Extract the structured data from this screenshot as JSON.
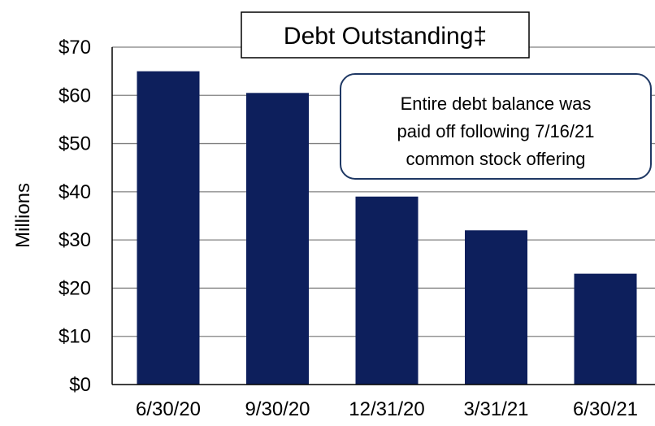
{
  "chart_data": {
    "type": "bar",
    "title": "Debt Outstanding‡",
    "ylabel": "Millions",
    "xlabel": "",
    "categories": [
      "6/30/20",
      "9/30/20",
      "12/31/20",
      "3/31/21",
      "6/30/21"
    ],
    "values": [
      65,
      60.5,
      39,
      32,
      23
    ],
    "ylim": [
      0,
      70
    ],
    "yticks": [
      0,
      10,
      20,
      30,
      40,
      50,
      60,
      70
    ],
    "ytick_labels": [
      "$0",
      "$10",
      "$20",
      "$30",
      "$40",
      "$50",
      "$60",
      "$70"
    ],
    "grid": true,
    "bar_color": "#0d1f5c",
    "annotation": {
      "lines": [
        "Entire debt balance was",
        "paid off following 7/16/21",
        "common stock offering"
      ],
      "border_color": "#1f3864"
    }
  }
}
